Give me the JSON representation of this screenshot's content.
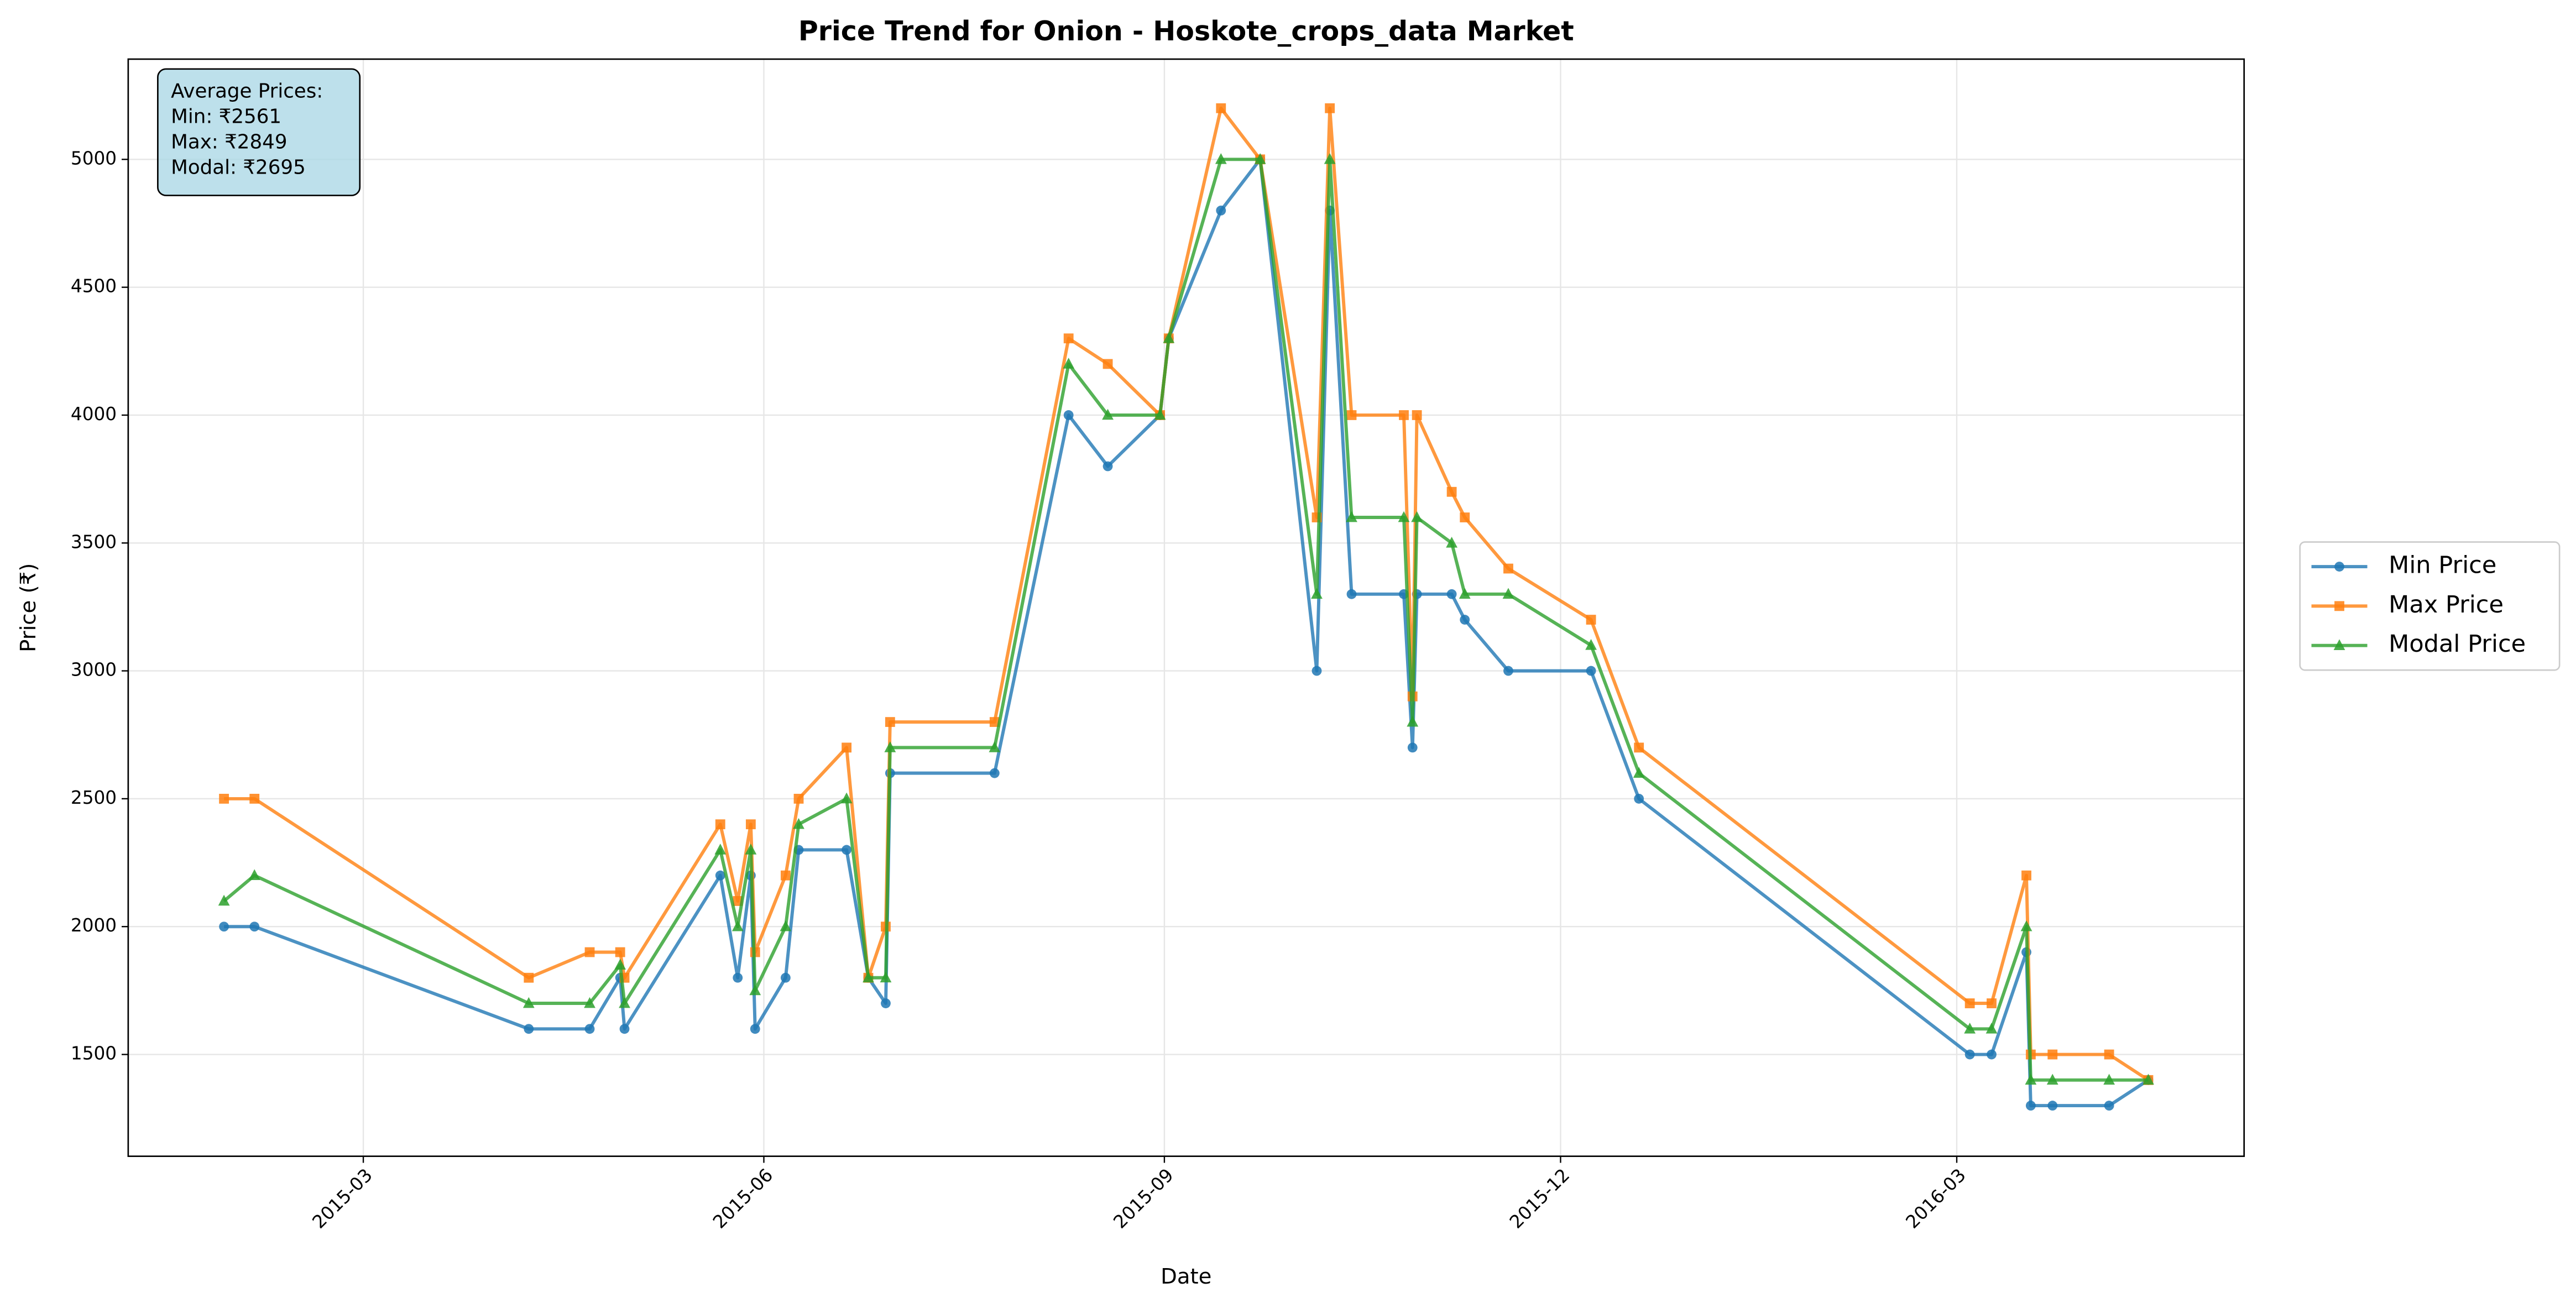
{
  "chart_data": {
    "type": "line",
    "title": "Price Trend for Onion - Hoskote_crops_data Market",
    "xlabel": "Date",
    "ylabel": "Price (₹)",
    "annotation": [
      "Average Prices:",
      "Min: ₹2561",
      "Max: ₹2849",
      "Modal: ₹2695"
    ],
    "x": [
      "2015-01-28",
      "2015-02-04",
      "2015-04-08",
      "2015-04-22",
      "2015-04-29",
      "2015-04-30",
      "2015-05-22",
      "2015-05-26",
      "2015-05-29",
      "2015-05-30",
      "2015-06-06",
      "2015-06-09",
      "2015-06-20",
      "2015-06-25",
      "2015-06-29",
      "2015-06-30",
      "2015-07-24",
      "2015-08-10",
      "2015-08-19",
      "2015-08-31",
      "2015-09-02",
      "2015-09-14",
      "2015-09-23",
      "2015-10-06",
      "2015-10-09",
      "2015-10-14",
      "2015-10-26",
      "2015-10-28",
      "2015-10-29",
      "2015-11-06",
      "2015-11-09",
      "2015-11-19",
      "2015-12-08",
      "2015-12-19",
      "2016-03-04",
      "2016-03-09",
      "2016-03-17",
      "2016-03-18",
      "2016-03-23",
      "2016-04-05",
      "2016-04-14"
    ],
    "series": [
      {
        "name": "Min Price",
        "color": "#1f77b4",
        "marker": "circle",
        "values": [
          2000,
          2000,
          1600,
          1600,
          1800,
          1600,
          2200,
          1800,
          2200,
          1600,
          1800,
          2300,
          2300,
          1800,
          1700,
          2600,
          2600,
          4000,
          3800,
          4000,
          4300,
          4800,
          5000,
          3000,
          4800,
          3300,
          3300,
          2700,
          3300,
          3300,
          3200,
          3000,
          3000,
          2500,
          1500,
          1500,
          1900,
          1300,
          1300,
          1300,
          1400
        ]
      },
      {
        "name": "Max Price",
        "color": "#ff7f0e",
        "marker": "square",
        "values": [
          2500,
          2500,
          1800,
          1900,
          1900,
          1800,
          2400,
          2100,
          2400,
          1900,
          2200,
          2500,
          2700,
          1800,
          2000,
          2800,
          2800,
          4300,
          4200,
          4000,
          4300,
          5200,
          5000,
          3600,
          5200,
          4000,
          4000,
          2900,
          4000,
          3700,
          3600,
          3400,
          3200,
          2700,
          1700,
          1700,
          2200,
          1500,
          1500,
          1500,
          1400
        ]
      },
      {
        "name": "Modal Price",
        "color": "#2ca02c",
        "marker": "triangle",
        "values": [
          2100,
          2200,
          1700,
          1700,
          1850,
          1700,
          2300,
          2000,
          2300,
          1750,
          2000,
          2400,
          2500,
          1800,
          1800,
          2700,
          2700,
          4200,
          4000,
          4000,
          4300,
          5000,
          5000,
          3300,
          5000,
          3600,
          3600,
          2800,
          3600,
          3500,
          3300,
          3300,
          3100,
          2600,
          1600,
          1600,
          2000,
          1400,
          1400,
          1400,
          1400
        ]
      }
    ],
    "xlim": [
      "2015-01-06",
      "2016-05-06"
    ],
    "xticks": [
      {
        "value": "2015-03-01",
        "label": "2015-03"
      },
      {
        "value": "2015-06-01",
        "label": "2015-06"
      },
      {
        "value": "2015-09-01",
        "label": "2015-09"
      },
      {
        "value": "2015-12-01",
        "label": "2015-12"
      },
      {
        "value": "2016-03-01",
        "label": "2016-03"
      }
    ],
    "ylim": [
      1102,
      5392
    ],
    "yticks": [
      1500,
      2000,
      2500,
      3000,
      3500,
      4000,
      4500,
      5000
    ],
    "grid": true,
    "legend": "outside right"
  }
}
